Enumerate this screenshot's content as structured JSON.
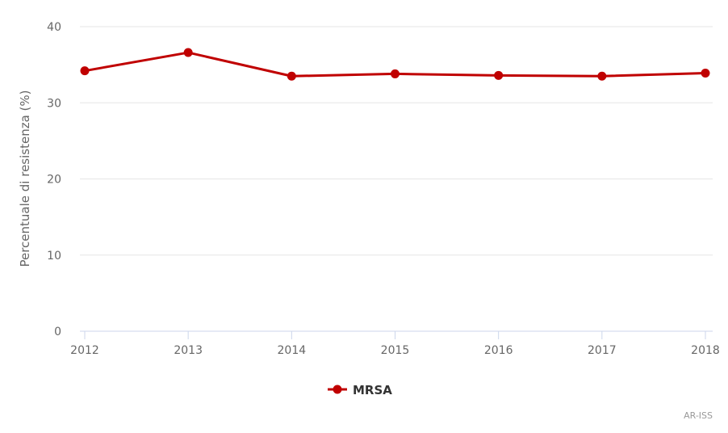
{
  "chart_data": {
    "type": "line",
    "title": "",
    "xlabel": "",
    "ylabel": "Percentuale di resistenza (%)",
    "categories": [
      "2012",
      "2013",
      "2014",
      "2015",
      "2016",
      "2017",
      "2018"
    ],
    "series": [
      {
        "name": "MRSA",
        "color": "#c00000",
        "values": [
          34.2,
          36.6,
          33.5,
          33.8,
          33.6,
          33.5,
          33.9
        ]
      }
    ],
    "y_ticks": [
      0,
      10,
      20,
      30,
      40
    ],
    "ylim": [
      0,
      40
    ],
    "grid": true,
    "legend_position": "bottom-center"
  },
  "credits": "AR-ISS"
}
